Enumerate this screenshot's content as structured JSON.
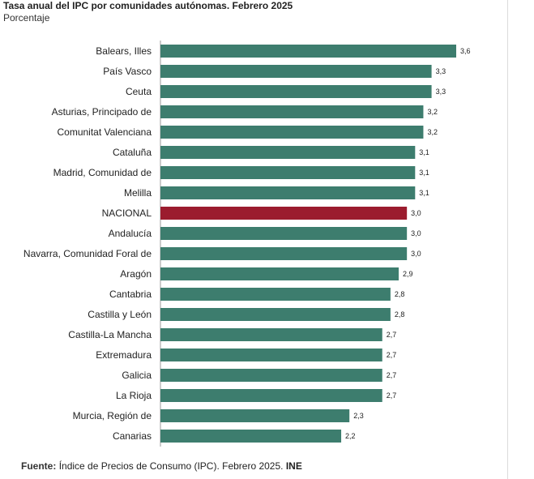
{
  "title": "Tasa anual del IPC por comunidades autónomas. Febrero 2025",
  "subtitle": "Porcentaje",
  "source": {
    "label": "Fuente:",
    "text": "Índice de Precios de Consumo (IPC). Febrero 2025.",
    "org": "INE"
  },
  "colors": {
    "bar": "#3d7d6e",
    "highlight": "#9b1c2e",
    "axis": "#999999"
  },
  "chart_data": {
    "type": "bar",
    "orientation": "horizontal",
    "categories": [
      "Balears, Illes",
      "País Vasco",
      "Ceuta",
      "Asturias, Principado de",
      "Comunitat Valenciana",
      "Cataluña",
      "Madrid, Comunidad de",
      "Melilla",
      "NACIONAL",
      "Andalucía",
      "Navarra, Comunidad Foral de",
      "Aragón",
      "Cantabria",
      "Castilla y León",
      "Castilla-La Mancha",
      "Extremadura",
      "Galicia",
      "La Rioja",
      "Murcia, Región de",
      "Canarias"
    ],
    "values": [
      3.6,
      3.3,
      3.3,
      3.2,
      3.2,
      3.1,
      3.1,
      3.1,
      3.0,
      3.0,
      3.0,
      2.9,
      2.8,
      2.8,
      2.7,
      2.7,
      2.7,
      2.7,
      2.3,
      2.2
    ],
    "value_labels": [
      "3,6",
      "3,3",
      "3,3",
      "3,2",
      "3,2",
      "3,1",
      "3,1",
      "3,1",
      "3,0",
      "3,0",
      "3,0",
      "2,9",
      "2,8",
      "2,8",
      "2,7",
      "2,7",
      "2,7",
      "2,7",
      "2,3",
      "2,2"
    ],
    "highlight": "NACIONAL",
    "xlim": [
      0,
      3.6
    ],
    "grid": false,
    "title": "Tasa anual del IPC por comunidades autónomas. Febrero 2025",
    "ylabel": "Porcentaje"
  }
}
